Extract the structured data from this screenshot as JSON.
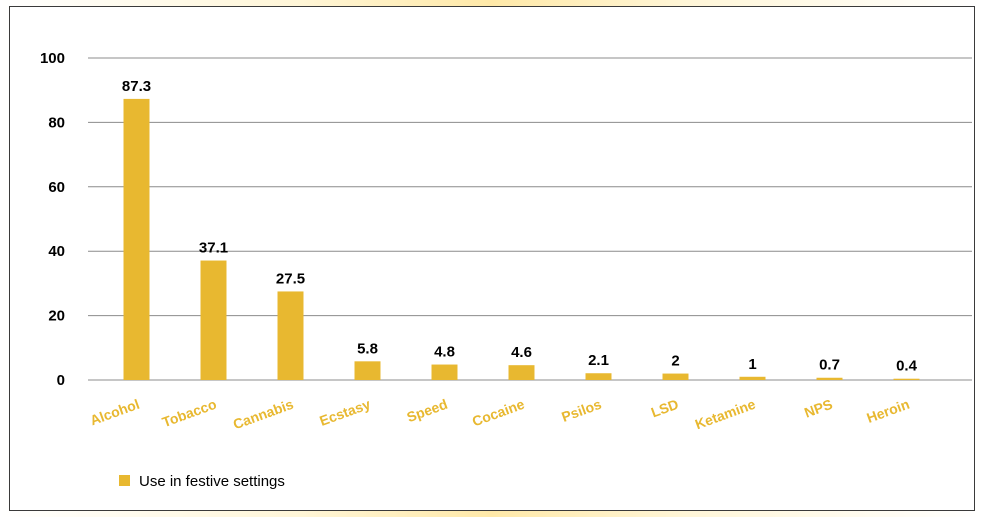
{
  "chart_data": {
    "type": "bar",
    "categories": [
      "Alcohol",
      "Tobacco",
      "Cannabis",
      "Ecstasy",
      "Speed",
      "Cocaine",
      "Psilos",
      "LSD",
      "Ketamine",
      "NPS",
      "Heroin"
    ],
    "series": [
      {
        "name": "Use in festive settings",
        "values": [
          87.3,
          37.1,
          27.5,
          5.8,
          4.8,
          4.6,
          2.1,
          2,
          1,
          0.7,
          0.4
        ],
        "value_labels": [
          "87.3",
          "37.1",
          "27.5",
          "5.8",
          "4.8",
          "4.6",
          "2.1",
          "2",
          "1",
          "0.7",
          "0.4"
        ]
      }
    ],
    "ylim": [
      0,
      100
    ],
    "yticks": [
      0,
      20,
      40,
      60,
      80,
      100
    ],
    "ytick_labels": [
      "0",
      "20",
      "40",
      "60",
      "80",
      "100"
    ],
    "grid": true,
    "legend_position": "bottom-left",
    "colors": {
      "bar": "#e8b830",
      "category_label": "#e8b830",
      "gridline": "#8c8c8c"
    }
  }
}
